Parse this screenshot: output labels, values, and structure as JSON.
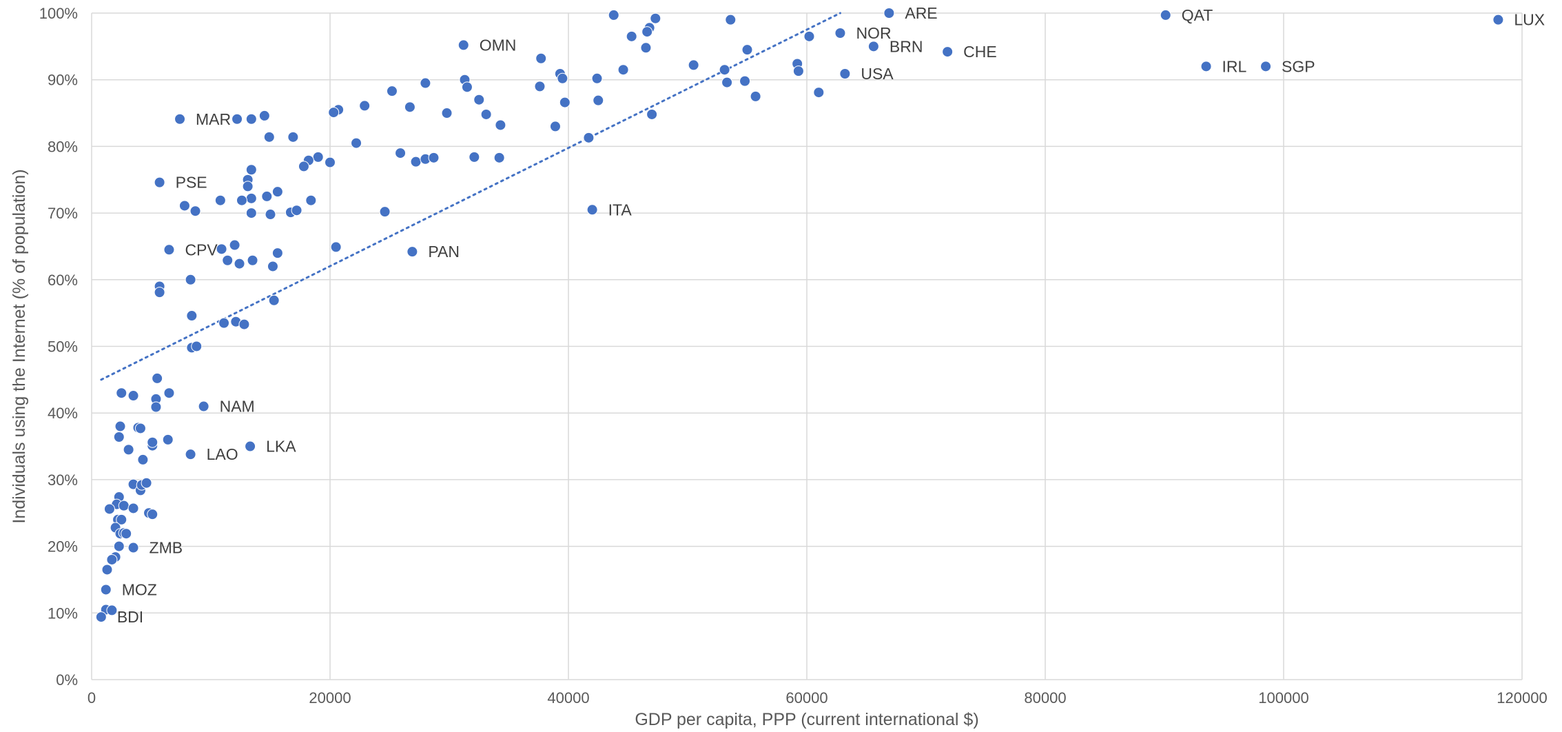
{
  "chart_data": {
    "type": "scatter",
    "title": "",
    "xlabel": "GDP per capita, PPP (current international $)",
    "ylabel": "Individuals using the Internet (% of population)",
    "xlim": [
      0,
      120000
    ],
    "ylim": [
      0,
      100
    ],
    "x_ticks": [
      0,
      20000,
      40000,
      60000,
      80000,
      100000,
      120000
    ],
    "x_tick_labels": [
      "0",
      "20000",
      "40000",
      "60000",
      "80000",
      "100000",
      "120000"
    ],
    "y_ticks": [
      0,
      10,
      20,
      30,
      40,
      50,
      60,
      70,
      80,
      90,
      100
    ],
    "y_tick_labels": [
      "0%",
      "10%",
      "20%",
      "30%",
      "40%",
      "50%",
      "60%",
      "70%",
      "80%",
      "90%",
      "100%"
    ],
    "grid": true,
    "point_color": "#4472c4",
    "trendline": {
      "type": "linear",
      "start": [
        800,
        45
      ],
      "end": [
        62800,
        100
      ],
      "color": "#4472c4",
      "style": "dotted"
    },
    "labeled_points": [
      {
        "label": "ARE",
        "x": 66900,
        "y": 100
      },
      {
        "label": "QAT",
        "x": 90100,
        "y": 99.7
      },
      {
        "label": "LUX",
        "x": 118000,
        "y": 99
      },
      {
        "label": "OMN",
        "x": 31200,
        "y": 95.2
      },
      {
        "label": "NOR",
        "x": 62800,
        "y": 97
      },
      {
        "label": "BRN",
        "x": 65600,
        "y": 95
      },
      {
        "label": "CHE",
        "x": 71800,
        "y": 94.2
      },
      {
        "label": "USA",
        "x": 63200,
        "y": 90.9
      },
      {
        "label": "IRL",
        "x": 93500,
        "y": 92
      },
      {
        "label": "SGP",
        "x": 98500,
        "y": 92
      },
      {
        "label": "MAR",
        "x": 7400,
        "y": 84.1
      },
      {
        "label": "PSE",
        "x": 5700,
        "y": 74.6
      },
      {
        "label": "ITA",
        "x": 42000,
        "y": 70.5
      },
      {
        "label": "CPV",
        "x": 6500,
        "y": 64.5
      },
      {
        "label": "PAN",
        "x": 26900,
        "y": 64.2
      },
      {
        "label": "NAM",
        "x": 9400,
        "y": 41
      },
      {
        "label": "LKA",
        "x": 13300,
        "y": 35
      },
      {
        "label": "LAO",
        "x": 8300,
        "y": 33.8
      },
      {
        "label": "ZMB",
        "x": 3500,
        "y": 19.8
      },
      {
        "label": "MOZ",
        "x": 1200,
        "y": 13.5
      },
      {
        "label": "BDI",
        "x": 800,
        "y": 9.4
      }
    ],
    "points": [
      [
        43800,
        99.7
      ],
      [
        47300,
        99.2
      ],
      [
        53600,
        99
      ],
      [
        46800,
        97.8
      ],
      [
        45300,
        96.5
      ],
      [
        46600,
        97.2
      ],
      [
        60200,
        96.5
      ],
      [
        46500,
        94.8
      ],
      [
        55000,
        94.5
      ],
      [
        37700,
        93.2
      ],
      [
        31300,
        90
      ],
      [
        31500,
        88.9
      ],
      [
        39300,
        90.9
      ],
      [
        39500,
        90.2
      ],
      [
        42400,
        90.2
      ],
      [
        44600,
        91.5
      ],
      [
        50500,
        92.2
      ],
      [
        53100,
        91.5
      ],
      [
        59200,
        92.4
      ],
      [
        59300,
        91.3
      ],
      [
        53300,
        89.6
      ],
      [
        54800,
        89.8
      ],
      [
        55700,
        87.5
      ],
      [
        61000,
        88.1
      ],
      [
        37600,
        89
      ],
      [
        28000,
        89.5
      ],
      [
        25200,
        88.3
      ],
      [
        22900,
        86.1
      ],
      [
        20700,
        85.5
      ],
      [
        20300,
        85.1
      ],
      [
        26700,
        85.9
      ],
      [
        29800,
        85
      ],
      [
        32500,
        87
      ],
      [
        33100,
        84.8
      ],
      [
        34300,
        83.2
      ],
      [
        39700,
        86.6
      ],
      [
        42500,
        86.9
      ],
      [
        47000,
        84.8
      ],
      [
        38900,
        83
      ],
      [
        41700,
        81.3
      ],
      [
        14500,
        84.6
      ],
      [
        12200,
        84.1
      ],
      [
        13400,
        84.1
      ],
      [
        14900,
        81.4
      ],
      [
        16900,
        81.4
      ],
      [
        22200,
        80.5
      ],
      [
        25900,
        79
      ],
      [
        19000,
        78.4
      ],
      [
        18200,
        77.9
      ],
      [
        17800,
        77
      ],
      [
        20000,
        77.6
      ],
      [
        27200,
        77.7
      ],
      [
        28000,
        78.1
      ],
      [
        28700,
        78.3
      ],
      [
        32100,
        78.4
      ],
      [
        34200,
        78.3
      ],
      [
        13400,
        76.5
      ],
      [
        13100,
        75
      ],
      [
        13100,
        74
      ],
      [
        13400,
        72.2
      ],
      [
        12600,
        71.9
      ],
      [
        14700,
        72.5
      ],
      [
        15600,
        73.2
      ],
      [
        18400,
        71.9
      ],
      [
        10800,
        71.9
      ],
      [
        7800,
        71.1
      ],
      [
        8700,
        70.3
      ],
      [
        13400,
        70
      ],
      [
        15000,
        69.8
      ],
      [
        16700,
        70.1
      ],
      [
        17200,
        70.4
      ],
      [
        24600,
        70.2
      ],
      [
        10900,
        64.6
      ],
      [
        12000,
        65.2
      ],
      [
        11400,
        62.9
      ],
      [
        12400,
        62.4
      ],
      [
        13500,
        62.9
      ],
      [
        15200,
        62
      ],
      [
        15600,
        64
      ],
      [
        20500,
        64.9
      ],
      [
        8300,
        60
      ],
      [
        5700,
        59
      ],
      [
        5700,
        58.1
      ],
      [
        8400,
        54.6
      ],
      [
        11100,
        53.5
      ],
      [
        12100,
        53.7
      ],
      [
        12800,
        53.3
      ],
      [
        15300,
        56.9
      ],
      [
        8400,
        49.8
      ],
      [
        8800,
        50
      ],
      [
        5500,
        45.2
      ],
      [
        5400,
        42.1
      ],
      [
        5400,
        40.9
      ],
      [
        6500,
        43
      ],
      [
        2500,
        43
      ],
      [
        3500,
        42.6
      ],
      [
        2400,
        38
      ],
      [
        2300,
        36.4
      ],
      [
        3900,
        37.8
      ],
      [
        4100,
        37.7
      ],
      [
        3100,
        34.5
      ],
      [
        4300,
        33
      ],
      [
        5100,
        35.1
      ],
      [
        5100,
        35.6
      ],
      [
        6400,
        36
      ],
      [
        3500,
        29.3
      ],
      [
        4100,
        28.4
      ],
      [
        4200,
        29.2
      ],
      [
        4600,
        29.5
      ],
      [
        2300,
        27.4
      ],
      [
        2100,
        26.3
      ],
      [
        2700,
        26.1
      ],
      [
        3500,
        25.7
      ],
      [
        1500,
        25.6
      ],
      [
        4800,
        25
      ],
      [
        5100,
        24.8
      ],
      [
        2200,
        24
      ],
      [
        2500,
        24
      ],
      [
        2000,
        22.8
      ],
      [
        2400,
        21.9
      ],
      [
        2700,
        22
      ],
      [
        2900,
        21.9
      ],
      [
        2300,
        20
      ],
      [
        2000,
        18.4
      ],
      [
        1700,
        18
      ],
      [
        1300,
        16.5
      ],
      [
        1200,
        10.5
      ],
      [
        1700,
        10.4
      ]
    ]
  }
}
